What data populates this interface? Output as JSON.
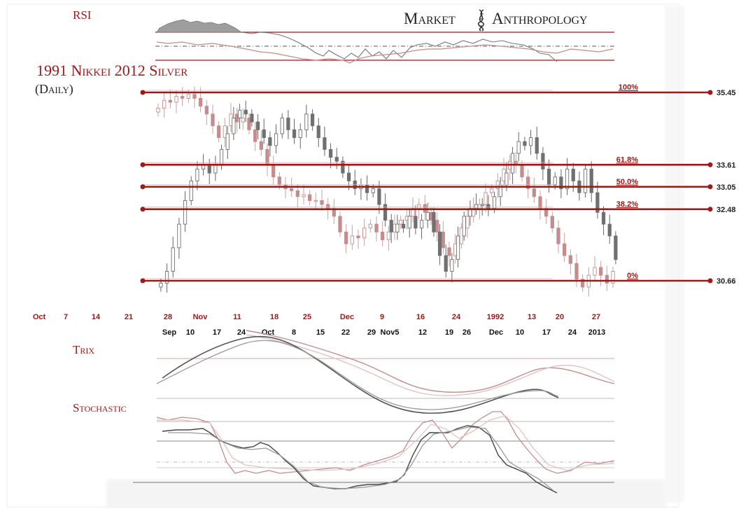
{
  "brand": {
    "name": "Market Anthropology",
    "word1": "Market",
    "word2": "Anthropology",
    "logo_glyph": "helix-icon"
  },
  "chart_title": "1991 Nikkei 2012 Silver",
  "chart_subtitle": "(Daily)",
  "panels": {
    "rsi_label": "RSI",
    "trix_label": "Trix",
    "stochastic_label": "Stochastic"
  },
  "colors": {
    "accent_red": "#a01818",
    "nikkei_series": "#c48c8c",
    "silver_series": "#707070",
    "grid": "#999999"
  },
  "chart_data": {
    "type": "line",
    "title": "1991 Nikkei 2012 Silver",
    "subtitle": "(Daily)",
    "ylim": [
      30.3,
      35.6
    ],
    "grid": false,
    "fib_levels": [
      {
        "label": "100%",
        "value": "35.45",
        "y": 35.45
      },
      {
        "label": "61.8%",
        "value": "33.61",
        "y": 33.61
      },
      {
        "label": "50.0%",
        "value": "33.05",
        "y": 33.05
      },
      {
        "label": "38.2%",
        "value": "32.48",
        "y": 32.48
      },
      {
        "label": "0%",
        "value": "30.66",
        "y": 30.66
      }
    ],
    "x_axis_top": [
      "Oct",
      "7",
      "14",
      "21",
      "28",
      "Nov",
      "11",
      "18",
      "25",
      "Dec",
      "9",
      "16",
      "24",
      "1992",
      "13",
      "20",
      "27"
    ],
    "x_axis_bottom": [
      "Sep",
      "10",
      "17",
      "24",
      "Oct",
      "8",
      "15",
      "22",
      "29",
      "Nov5",
      "12",
      "19",
      "26",
      "Dec",
      "10",
      "17",
      "24",
      "2013"
    ],
    "series": [
      {
        "name": "1991 Nikkei",
        "style": "candles-red",
        "closes": [
          35.05,
          35.25,
          35.2,
          35.35,
          35.3,
          35.4,
          35.3,
          35.1,
          34.9,
          34.6,
          34.3,
          34.6,
          34.9,
          34.7,
          34.8,
          34.5,
          34.2,
          34.0,
          33.6,
          33.3,
          33.1,
          33.0,
          32.95,
          32.8,
          32.85,
          32.7,
          32.7,
          32.6,
          32.5,
          32.3,
          31.9,
          31.6,
          31.8,
          31.75,
          32.0,
          32.1,
          31.9,
          31.7,
          31.9,
          32.1,
          32.2,
          32.3,
          32.5,
          32.6,
          32.4,
          32.2,
          31.9,
          31.5,
          31.3,
          31.6,
          32.0,
          32.3,
          32.5,
          32.6,
          32.9,
          33.0,
          33.2,
          33.5,
          33.7,
          33.6,
          33.3,
          33.0,
          32.8,
          32.5,
          32.3,
          32.0,
          31.6,
          31.3,
          31.1,
          30.7,
          30.5,
          30.8,
          31.0,
          30.8,
          30.6,
          30.9
        ]
      },
      {
        "name": "2012 Silver",
        "style": "candles-gray",
        "closes": [
          30.6,
          30.9,
          31.5,
          32.1,
          32.7,
          33.2,
          33.5,
          33.6,
          33.4,
          33.6,
          34.0,
          34.4,
          34.8,
          35.0,
          34.9,
          34.7,
          34.5,
          34.3,
          34.1,
          34.4,
          34.8,
          34.5,
          34.3,
          34.5,
          34.9,
          34.6,
          34.3,
          34.0,
          33.8,
          33.7,
          33.4,
          33.2,
          33.0,
          33.1,
          32.9,
          33.0,
          32.6,
          32.2,
          31.9,
          32.1,
          32.0,
          32.3,
          32.0,
          32.2,
          32.4,
          31.9,
          31.3,
          30.9,
          31.2,
          31.8,
          32.3,
          32.5,
          32.6,
          32.6,
          32.5,
          32.8,
          33.1,
          33.4,
          33.9,
          34.2,
          34.1,
          34.3,
          33.9,
          33.5,
          33.1,
          33.3,
          33.0,
          33.5,
          33.2,
          32.9,
          33.5,
          32.9,
          32.4,
          32.1,
          31.8,
          31.2
        ]
      }
    ]
  }
}
